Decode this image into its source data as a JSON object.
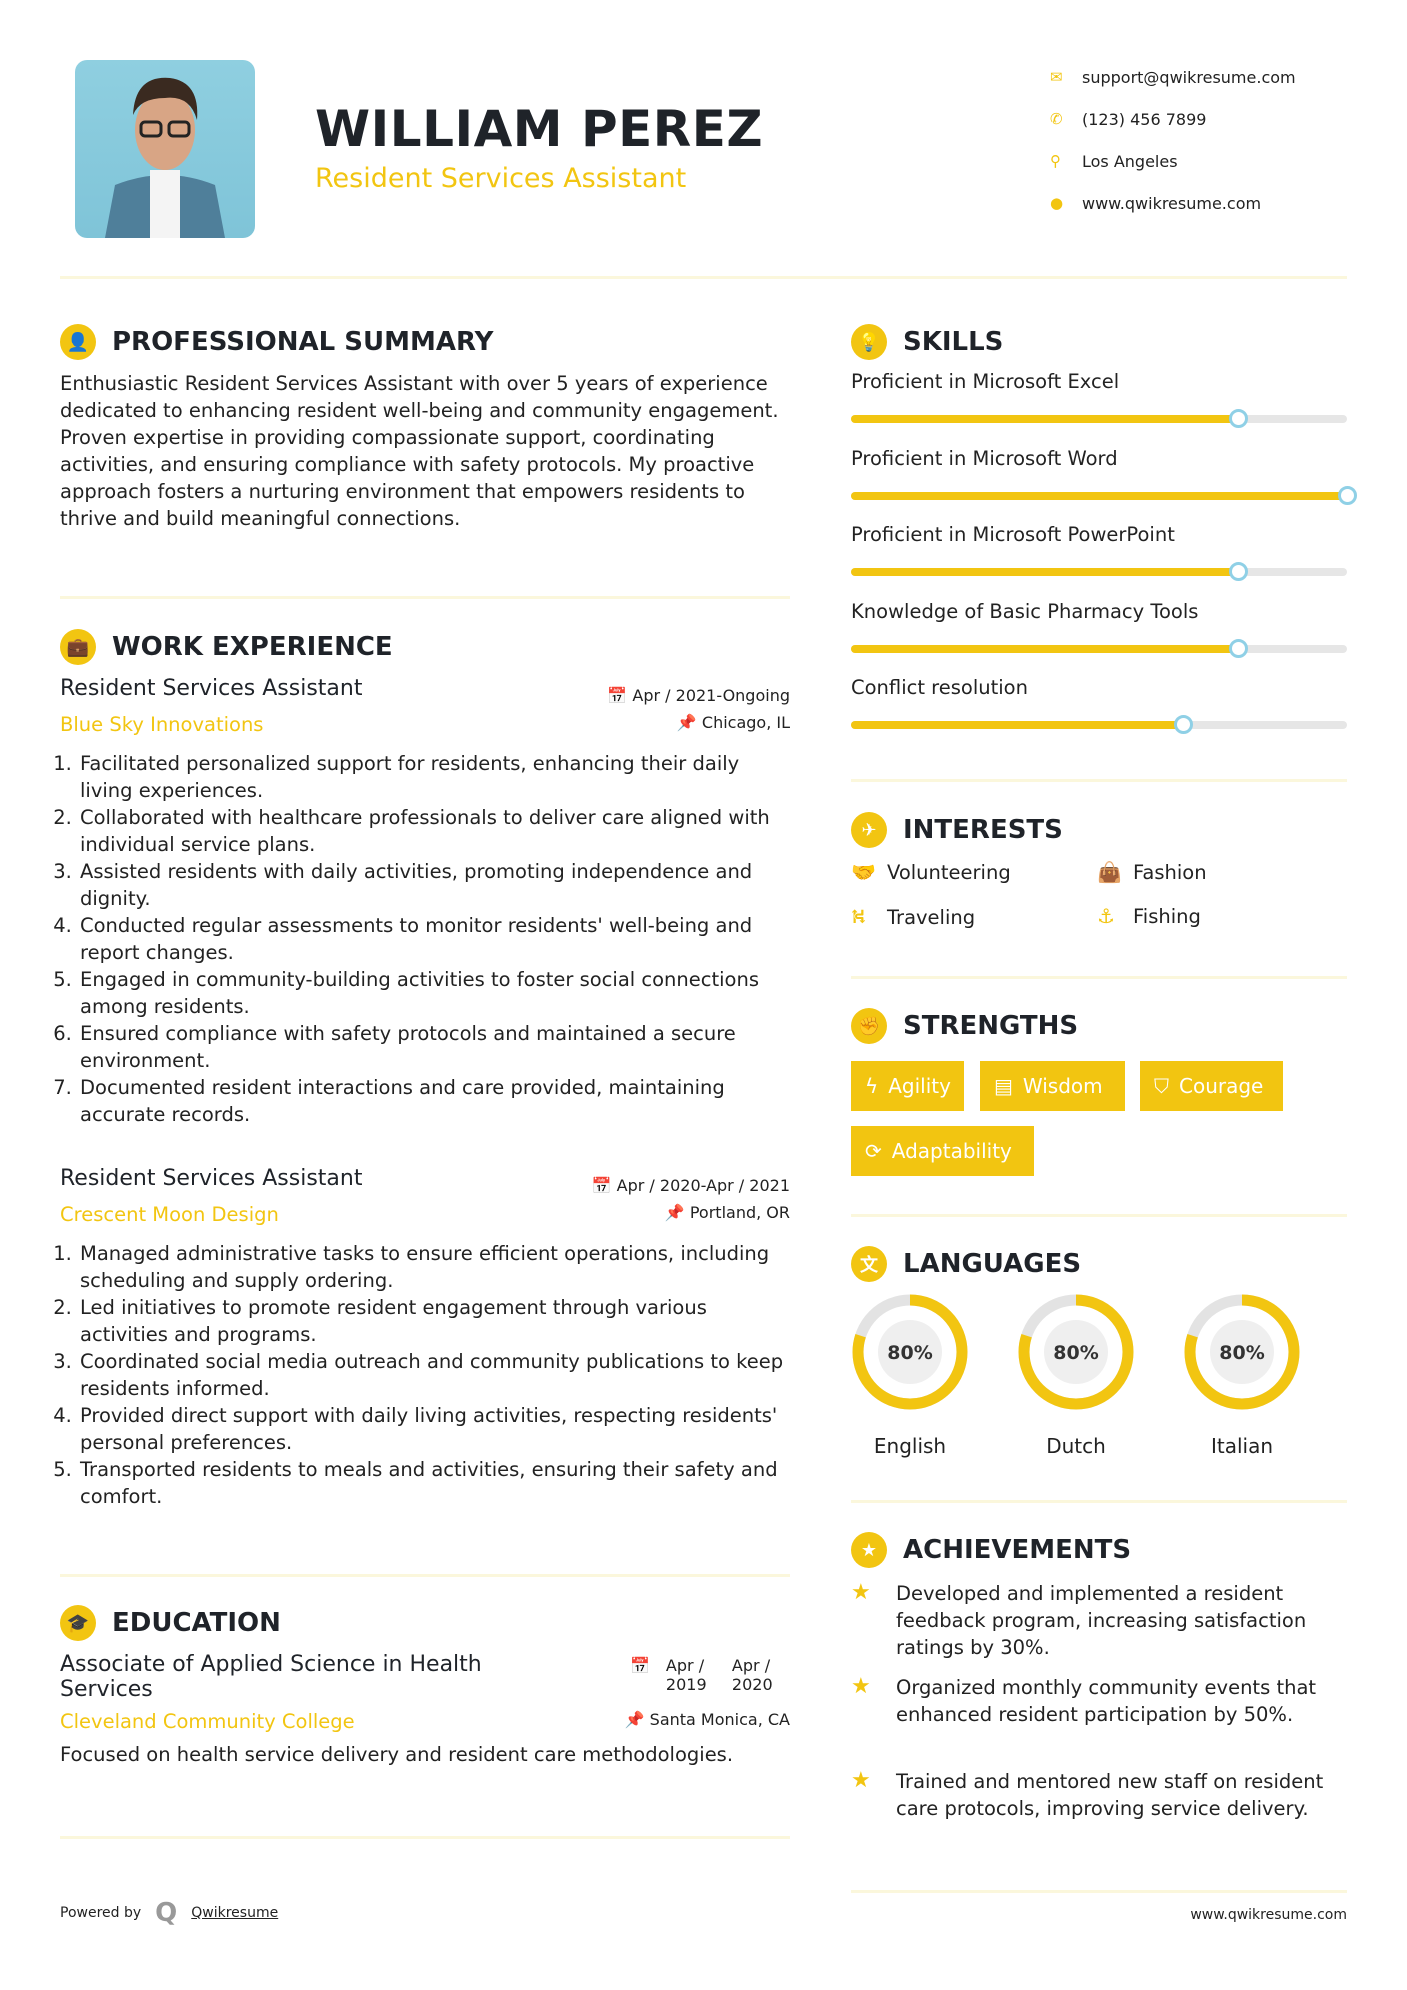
{
  "header": {
    "name": "WILLIAM PEREZ",
    "title": "Resident Services Assistant",
    "contacts": [
      {
        "icon": "envelope-icon",
        "text": "support@qwikresume.com"
      },
      {
        "icon": "phone-icon",
        "text": "(123) 456 7899"
      },
      {
        "icon": "map-pin-icon",
        "text": "Los Angeles"
      },
      {
        "icon": "globe-icon",
        "text": "www.qwikresume.com"
      }
    ]
  },
  "summary": {
    "heading": "PROFESSIONAL SUMMARY",
    "text": "Enthusiastic Resident Services Assistant with over 5 years of experience dedicated to enhancing resident well-being and community engagement. Proven expertise in providing compassionate support, coordinating activities, and ensuring compliance with safety protocols. My proactive approach fosters a nurturing environment that empowers residents to thrive and build meaningful connections."
  },
  "work": {
    "heading": "WORK EXPERIENCE",
    "jobs": [
      {
        "title": "Resident Services Assistant",
        "date": "Apr / 2021-Ongoing",
        "company": "Blue Sky Innovations",
        "location": "Chicago, IL",
        "items": [
          "Facilitated personalized support for residents, enhancing their daily living experiences.",
          "Collaborated with healthcare professionals to deliver care aligned with individual service plans.",
          "Assisted residents with daily activities, promoting independence and dignity.",
          "Conducted regular assessments to monitor residents' well-being and report changes.",
          "Engaged in community-building activities to foster social connections among residents.",
          "Ensured compliance with safety protocols and maintained a secure environment.",
          "Documented resident interactions and care provided, maintaining accurate records."
        ]
      },
      {
        "title": "Resident Services Assistant",
        "date": "Apr / 2020-Apr / 2021",
        "company": "Crescent Moon Design",
        "location": "Portland, OR",
        "items": [
          "Managed administrative tasks to ensure efficient operations, including scheduling and supply ordering.",
          "Led initiatives to promote resident engagement through various activities and programs.",
          "Coordinated social media outreach and community publications to keep residents informed.",
          "Provided direct support with daily living activities, respecting residents' personal preferences.",
          "Transported residents to meals and activities, ensuring their safety and comfort."
        ]
      }
    ]
  },
  "education": {
    "heading": "EDUCATION",
    "degree": "Associate of Applied Science in Health Services",
    "start": "Apr / 2019",
    "end": "Apr / 2020",
    "school": "Cleveland Community College",
    "location": "Santa Monica, CA",
    "description": "Focused on health service delivery and resident care methodologies."
  },
  "skills": {
    "heading": "SKILLS",
    "items": [
      {
        "label": "Proficient in Microsoft Excel",
        "level": 78
      },
      {
        "label": "Proficient in Microsoft Word",
        "level": 100
      },
      {
        "label": "Proficient in Microsoft PowerPoint",
        "level": 78
      },
      {
        "label": "Knowledge of Basic Pharmacy Tools",
        "level": 78
      },
      {
        "label": "Conflict resolution",
        "level": 67
      }
    ]
  },
  "interests": {
    "heading": "INTERESTS",
    "items": [
      {
        "label": "Volunteering",
        "icon": "handshake-icon"
      },
      {
        "label": "Fashion",
        "icon": "shopping-bag-icon"
      },
      {
        "label": "Traveling",
        "icon": "binoculars-icon"
      },
      {
        "label": "Fishing",
        "icon": "anchor-icon"
      }
    ]
  },
  "strengths": {
    "heading": "STRENGTHS",
    "items": [
      {
        "label": "Agility",
        "icon": "bolt-icon"
      },
      {
        "label": "Wisdom",
        "icon": "book-icon"
      },
      {
        "label": "Courage",
        "icon": "shield-icon"
      },
      {
        "label": "Adaptability",
        "icon": "refresh-icon"
      }
    ]
  },
  "languages": {
    "heading": "LANGUAGES",
    "items": [
      {
        "name": "English",
        "percent": 80,
        "label": "80%"
      },
      {
        "name": "Dutch",
        "percent": 80,
        "label": "80%"
      },
      {
        "name": "Italian",
        "percent": 80,
        "label": "80%"
      }
    ]
  },
  "achievements": {
    "heading": "ACHIEVEMENTS",
    "items": [
      "Developed and implemented a resident feedback program, increasing satisfaction ratings by 30%.",
      "Organized monthly community events that enhanced resident participation by 50%.",
      "Trained and mentored new staff on resident care protocols, improving service delivery."
    ]
  },
  "footer": {
    "powered_by": "Powered by",
    "brand": "Qwikresume",
    "website": "www.qwikresume.com"
  },
  "colors": {
    "accent": "#f2c511",
    "knob": "#8fd0e6",
    "text": "#1f2329"
  }
}
